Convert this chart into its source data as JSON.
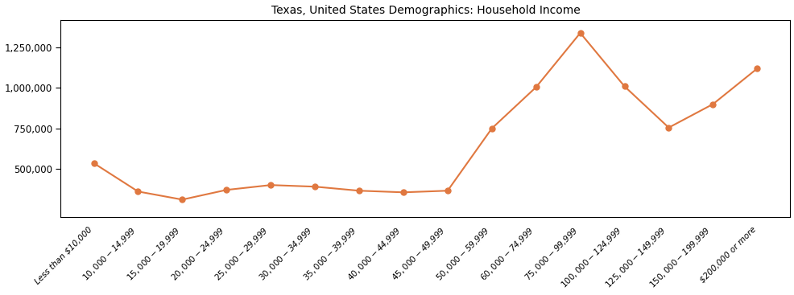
{
  "title": "Texas, United States Demographics: Household Income",
  "categories": [
    "Less than $10,000",
    "$10,000 - $14,999",
    "$15,000 - $19,999",
    "$20,000 - $24,999",
    "$25,000 - $29,999",
    "$30,000 - $34,999",
    "$35,000 - $39,999",
    "$40,000 - $44,999",
    "$45,000 - $49,999",
    "$50,000 - $59,999",
    "$60,000 - $74,999",
    "$75,000 - $99,999",
    "$100,000 - $124,999",
    "$125,000 - $149,999",
    "$150,000 - $199,999",
    "$200,000 or more"
  ],
  "values": [
    535000,
    360000,
    310000,
    370000,
    400000,
    390000,
    365000,
    355000,
    365000,
    750000,
    1005000,
    1340000,
    1010000,
    755000,
    900000,
    1120000
  ],
  "line_color": "#E07840",
  "marker_color": "#E07840",
  "marker_size": 5,
  "line_width": 1.5,
  "ylim": [
    200000,
    1420000
  ],
  "yticks": [
    500000,
    750000,
    1000000,
    1250000
  ],
  "background_color": "#ffffff",
  "title_fontsize": 10,
  "tick_fontsize": 8.5,
  "xtick_fontsize": 7.5
}
